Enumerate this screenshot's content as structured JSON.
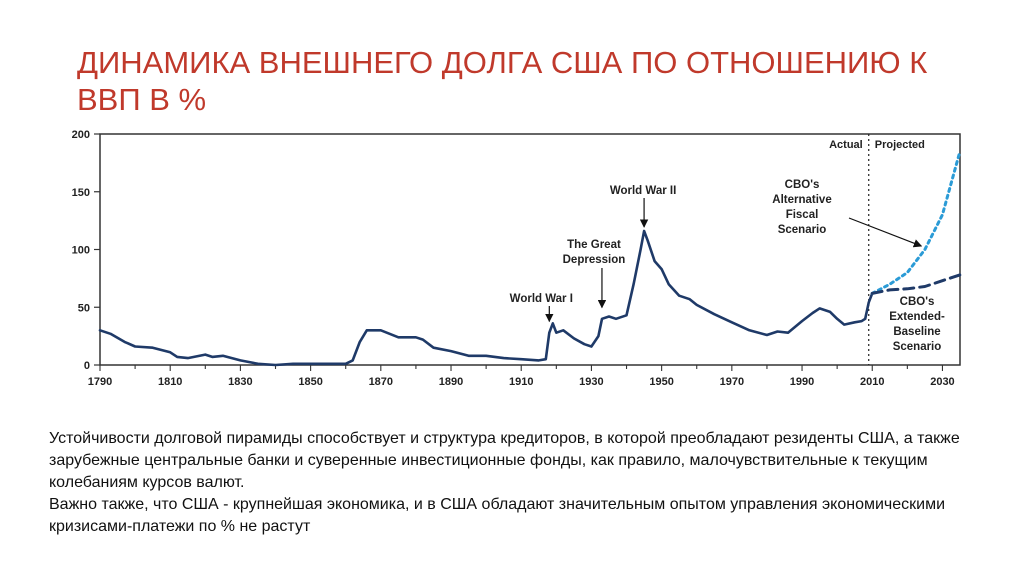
{
  "slide": {
    "title_line1": "ДИНАМИКА ВНЕШНЕГО ДОЛГА США ПО ОТНОШЕНИЮ К",
    "title_line2": "ВВП В %",
    "paragraph1": "Устойчивости долговой пирамиды способствует и структура кредиторов, в которой преобладают резиденты США, а также зарубежные центральные банки и суверенные инвестиционные фонды, как правило, малочувствительные к текущим колебаниям курсов валют.",
    "paragraph2": "Важно также, что  США -  крупнейшая экономика, и в  США обладают значительным опытом управления экономическими кризисами-платежи по % не растут",
    "title_color": "#c0392b"
  },
  "chart_data": {
    "type": "line",
    "xlim": [
      1790,
      2035
    ],
    "ylim": [
      0,
      200
    ],
    "x_ticks": [
      1790,
      1810,
      1830,
      1850,
      1870,
      1890,
      1910,
      1930,
      1950,
      1970,
      1990,
      2010,
      2030
    ],
    "y_ticks": [
      0,
      50,
      100,
      150,
      200
    ],
    "grid": false,
    "divider_year": 2009,
    "region_labels": {
      "left": "Actual",
      "right": "Projected"
    },
    "series": [
      {
        "style": "solid",
        "color": "#1f3a68",
        "points": [
          [
            1790,
            30
          ],
          [
            1793,
            27
          ],
          [
            1797,
            20
          ],
          [
            1800,
            16
          ],
          [
            1805,
            15
          ],
          [
            1810,
            11
          ],
          [
            1812,
            7
          ],
          [
            1815,
            6
          ],
          [
            1820,
            9
          ],
          [
            1822,
            7
          ],
          [
            1825,
            8
          ],
          [
            1830,
            4
          ],
          [
            1835,
            1
          ],
          [
            1840,
            0
          ],
          [
            1845,
            1
          ],
          [
            1850,
            1
          ],
          [
            1855,
            1
          ],
          [
            1860,
            1
          ],
          [
            1862,
            4
          ],
          [
            1864,
            20
          ],
          [
            1866,
            30
          ],
          [
            1870,
            30
          ],
          [
            1875,
            24
          ],
          [
            1880,
            24
          ],
          [
            1882,
            22
          ],
          [
            1885,
            15
          ],
          [
            1890,
            12
          ],
          [
            1895,
            8
          ],
          [
            1900,
            8
          ],
          [
            1905,
            6
          ],
          [
            1910,
            5
          ],
          [
            1915,
            4
          ],
          [
            1917,
            5
          ],
          [
            1918,
            28
          ],
          [
            1919,
            36
          ],
          [
            1920,
            28
          ],
          [
            1922,
            30
          ],
          [
            1925,
            23
          ],
          [
            1928,
            18
          ],
          [
            1930,
            16
          ],
          [
            1932,
            25
          ],
          [
            1933,
            40
          ],
          [
            1935,
            42
          ],
          [
            1937,
            40
          ],
          [
            1940,
            43
          ],
          [
            1942,
            70
          ],
          [
            1944,
            100
          ],
          [
            1945,
            116
          ],
          [
            1946,
            108
          ],
          [
            1948,
            90
          ],
          [
            1950,
            83
          ],
          [
            1952,
            70
          ],
          [
            1955,
            60
          ],
          [
            1958,
            57
          ],
          [
            1960,
            52
          ],
          [
            1965,
            44
          ],
          [
            1970,
            37
          ],
          [
            1975,
            30
          ],
          [
            1980,
            26
          ],
          [
            1983,
            29
          ],
          [
            1986,
            28
          ],
          [
            1990,
            38
          ],
          [
            1993,
            45
          ],
          [
            1995,
            49
          ],
          [
            1998,
            46
          ],
          [
            2000,
            40
          ],
          [
            2002,
            35
          ],
          [
            2005,
            37
          ],
          [
            2007,
            38
          ],
          [
            2008,
            40
          ],
          [
            2009,
            54
          ],
          [
            2010,
            62
          ]
        ]
      },
      {
        "name": "CBO's Alternative Fiscal Scenario",
        "style": "dotted",
        "color": "#2b9bd6",
        "points": [
          [
            2010,
            62
          ],
          [
            2015,
            70
          ],
          [
            2020,
            80
          ],
          [
            2025,
            100
          ],
          [
            2030,
            130
          ],
          [
            2035,
            185
          ]
        ]
      },
      {
        "name": "CBO's Extended-Baseline Scenario",
        "style": "dashed",
        "color": "#1f3a68",
        "points": [
          [
            2010,
            62
          ],
          [
            2015,
            65
          ],
          [
            2020,
            66
          ],
          [
            2025,
            68
          ],
          [
            2030,
            73
          ],
          [
            2035,
            78
          ]
        ]
      }
    ],
    "annotations": [
      {
        "text": "World War I",
        "year": 1918,
        "value": 36
      },
      {
        "text": "The Great Depression",
        "year": 1933,
        "value": 48
      },
      {
        "text": "World War II",
        "year": 1945,
        "value": 116
      },
      {
        "text": "CBO's Alternative Fiscal Scenario",
        "year": 2024,
        "value": 103
      },
      {
        "text": "CBO's Extended-Baseline Scenario",
        "year": 2024,
        "value": 68
      }
    ]
  }
}
